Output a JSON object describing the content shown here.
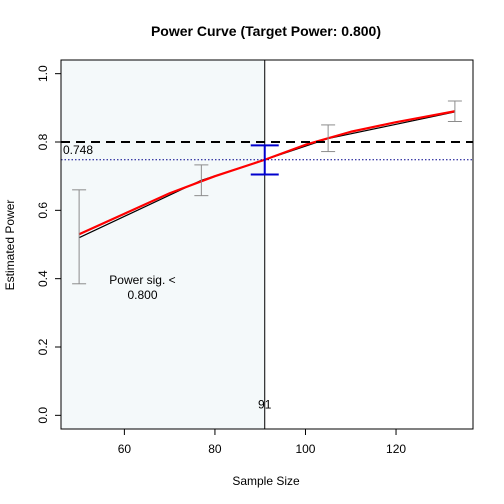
{
  "chart_data": {
    "type": "line",
    "title": "Power Curve (Target Power: 0.800)",
    "xlabel": "Sample Size",
    "ylabel": "Estimated Power",
    "xlim": [
      46,
      137
    ],
    "ylim": [
      -0.04,
      1.04
    ],
    "x_ticks": [
      60,
      80,
      100,
      120
    ],
    "y_ticks": [
      0.0,
      0.2,
      0.4,
      0.6,
      0.8,
      1.0
    ],
    "x_tick_labels": [
      "60",
      "80",
      "100",
      "120"
    ],
    "y_tick_labels": [
      "0.0",
      "0.2",
      "0.4",
      "0.6",
      "0.8",
      "1.0"
    ],
    "grid": false,
    "shaded_region": {
      "x_range": [
        46,
        91
      ],
      "color": "#f4f9fa",
      "label": "Power sig. <\n0.800",
      "label_at": [
        64,
        0.385
      ]
    },
    "target_power": {
      "value": 0.8,
      "style": "dashed",
      "color": "#000000"
    },
    "estimated_power_line": {
      "value": 0.748,
      "label": "0.748",
      "style": "dotted",
      "color": "#00008b"
    },
    "selected_sample_size": {
      "value": 91,
      "label": "91",
      "color": "#000000"
    },
    "series": [
      {
        "color": "#000000",
        "x": [
          50,
          77,
          91,
          105,
          133
        ],
        "y": [
          0.52,
          0.688,
          0.748,
          0.81,
          0.888
        ]
      },
      {
        "color": "#ff0000",
        "x": [
          50,
          60,
          70,
          80,
          91,
          100,
          110,
          120,
          133
        ],
        "y": [
          0.53,
          0.59,
          0.65,
          0.7,
          0.748,
          0.792,
          0.83,
          0.858,
          0.89
        ]
      }
    ],
    "error_bars": [
      {
        "x": 50,
        "low": 0.385,
        "high": 0.66,
        "color": "#8c8c8c"
      },
      {
        "x": 77,
        "low": 0.643,
        "high": 0.733,
        "color": "#8c8c8c"
      },
      {
        "x": 91,
        "low": 0.705,
        "high": 0.79,
        "color": "#0000cd",
        "emphasis": true
      },
      {
        "x": 105,
        "low": 0.772,
        "high": 0.85,
        "color": "#8c8c8c"
      },
      {
        "x": 133,
        "low": 0.86,
        "high": 0.92,
        "color": "#8c8c8c"
      }
    ]
  }
}
